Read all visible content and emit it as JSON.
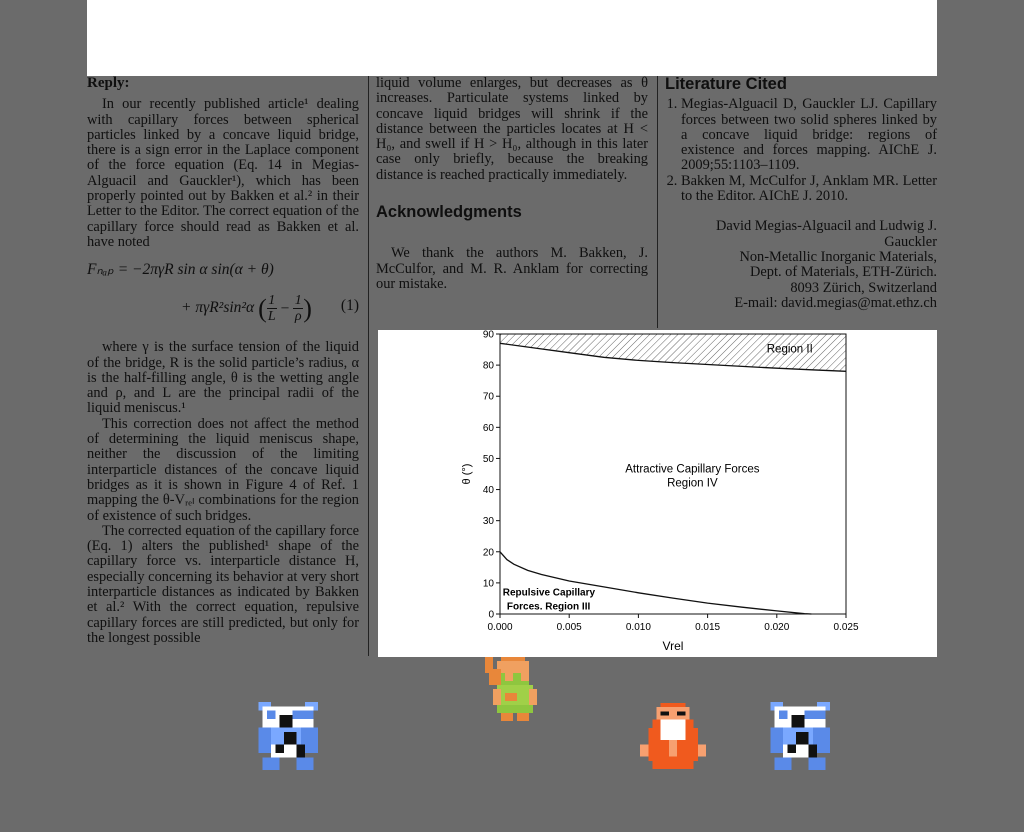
{
  "col1": {
    "reply_heading": "Reply:",
    "p1": "In our recently published article¹ dealing with capillary forces between spherical particles linked by a concave liquid bridge, there is a sign error in the Laplace component of the force equation (Eq. 14 in Megias-Alguacil and Gauckler¹), which has been properly pointed out by Bakken et al.² in their Letter to the Editor. The correct equation of the capillary force should read as Bakken et al. have noted",
    "equation_line1": "Fₙₐₚ = −2πγR sin α sin(α + θ)",
    "equation_line2_prefix": "+ πγR²sin²α",
    "equation_frac1_num": "1",
    "equation_frac1_den": "L",
    "equation_frac2_num": "1",
    "equation_frac2_den": "ρ",
    "equation_number": "(1)",
    "p2": "where γ is the surface tension of the liquid of the bridge, R is the solid particle’s radius, α is the half-filling angle, θ is the wetting angle and ρ, and L are the principal radii of the liquid meniscus.¹",
    "p3": "This correction does not affect the method of determining the liquid meniscus shape, neither the discussion of the limiting interparticle distances of the concave liquid bridges as it is shown in Figure 4 of Ref. 1 mapping the θ-Vᵣₑₗ combinations for the region of existence of such bridges.",
    "p4": "The corrected equation of the capillary force (Eq. 1) alters the published¹ shape of the capillary force vs. interparticle distance H, especially concerning its behavior at very short interparticle distances as indicated by Bakken et al.² With the correct equation, repulsive capillary forces are still predicted, but only for the longest possible"
  },
  "col2": {
    "p1": "liquid volume enlarges, but decreases as θ increases. Particulate systems linked by concave liquid bridges will shrink if the distance between the particles locates at H < H₀, and swell if H > H₀, although in this later case only briefly, because the breaking distance is reached practically immediately.",
    "ack_heading": "Acknowledgments",
    "ack_text": "We thank the authors M. Bakken, J. McCulfor, and M. R. Anklam for correcting our mistake."
  },
  "col3": {
    "lit_heading": "Literature Cited",
    "ref1": "Megias-Alguacil D, Gauckler LJ. Capillary forces between two solid spheres linked by a concave liquid bridge: regions of existence and forces mapping. AIChE J. 2009;55:1103–1109.",
    "ref2": "Bakken M, McCulfor J, Anklam MR. Letter to the Editor. AIChE J. 2010.",
    "affil_names": "David Megias-Alguacil and Ludwig J. Gauckler",
    "affil_dept1": "Non-Metallic Inorganic Materials,",
    "affil_dept2": "Dept. of Materials, ETH-Zürich.",
    "affil_city": "8093 Zürich, Switzerland",
    "affil_email": "E-mail: david.megias@mat.ethz.ch"
  },
  "chart_data": {
    "type": "line",
    "xlabel": "Vrel",
    "ylabel": "θ (°)",
    "xlim": [
      0,
      0.025
    ],
    "ylim": [
      0,
      90
    ],
    "x_ticks": [
      "0.000",
      "0.005",
      "0.010",
      "0.015",
      "0.020",
      "0.025"
    ],
    "y_ticks": [
      "0",
      "10",
      "20",
      "30",
      "40",
      "50",
      "60",
      "70",
      "80",
      "90"
    ],
    "series": [
      {
        "x": [
          0,
          0.0005,
          0.001,
          0.002,
          0.003,
          0.005,
          0.0075,
          0.01,
          0.0125,
          0.015,
          0.0175,
          0.02,
          0.022,
          0.0225
        ],
        "y": [
          20,
          17.5,
          16,
          14,
          12.7,
          10.6,
          8.7,
          6.8,
          5.1,
          3.5,
          2.2,
          1.0,
          0.1,
          0
        ]
      },
      {
        "x": [
          0,
          0.0025,
          0.005,
          0.0075,
          0.01,
          0.0125,
          0.015,
          0.0175,
          0.02,
          0.0225,
          0.025
        ],
        "y": [
          87,
          85.5,
          84,
          82.5,
          81.5,
          80.8,
          80.2,
          79.6,
          79,
          78.5,
          78
        ]
      }
    ],
    "annotations": [
      {
        "text": "Region II",
        "x": 0.0226,
        "y": 84
      },
      {
        "text": "Attractive Capillary Forces",
        "x": 0.0139,
        "y": 45.5
      },
      {
        "text": "Region IV",
        "x": 0.0139,
        "y": 41
      },
      {
        "text": "Repulsive Capillary",
        "x": 0.0002,
        "y": 6
      },
      {
        "text": "Forces. Region III",
        "x": 0.0005,
        "y": 1.5
      }
    ],
    "fill": "Region II band above upper curve is hatched"
  },
  "sprites": {
    "link": "hero-raising-hand-sprite",
    "moblin": "blue-moblin-sprite",
    "old_man": "old-man-sprite"
  }
}
